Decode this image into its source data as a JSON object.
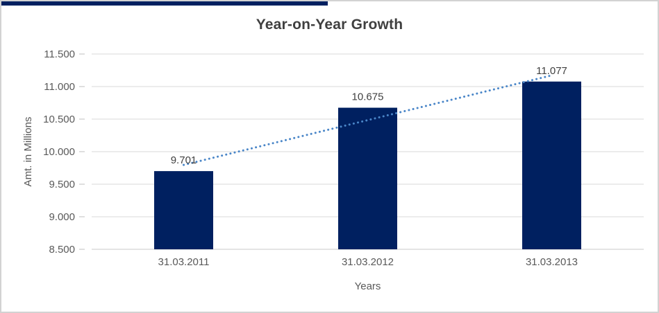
{
  "window": {
    "accent_strip_color": "#002060",
    "border_color": "#d2d2d2",
    "background_color": "#ffffff"
  },
  "chart_data": {
    "type": "bar",
    "title": "Year-on-Year Growth",
    "xlabel": "Years",
    "ylabel": "Amt. in Millions",
    "categories": [
      "31.03.2011",
      "31.03.2012",
      "31.03.2013"
    ],
    "values": [
      9701,
      10675,
      11077
    ],
    "value_labels": [
      "9.701",
      "10.675",
      "11.077"
    ],
    "ylim": [
      8500,
      11500
    ],
    "yticks": [
      {
        "value": 8500,
        "label": "8.500"
      },
      {
        "value": 9000,
        "label": "9.000"
      },
      {
        "value": 9500,
        "label": "9.500"
      },
      {
        "value": 10000,
        "label": "10.000"
      },
      {
        "value": 10500,
        "label": "10.500"
      },
      {
        "value": 11000,
        "label": "11.000"
      },
      {
        "value": 11500,
        "label": "11.500"
      }
    ],
    "grid": true,
    "legend": false,
    "trendline": {
      "type": "linear",
      "style": "dotted",
      "color": "#4A86C8"
    },
    "colors": {
      "bar": "#002060",
      "gridline": "#d9d9d9",
      "axis_line": "#c9c9c9",
      "tick_mark": "#bfbfbf",
      "title_text": "#3f3f3f",
      "label_text": "#404040",
      "axis_text": "#595959"
    }
  }
}
